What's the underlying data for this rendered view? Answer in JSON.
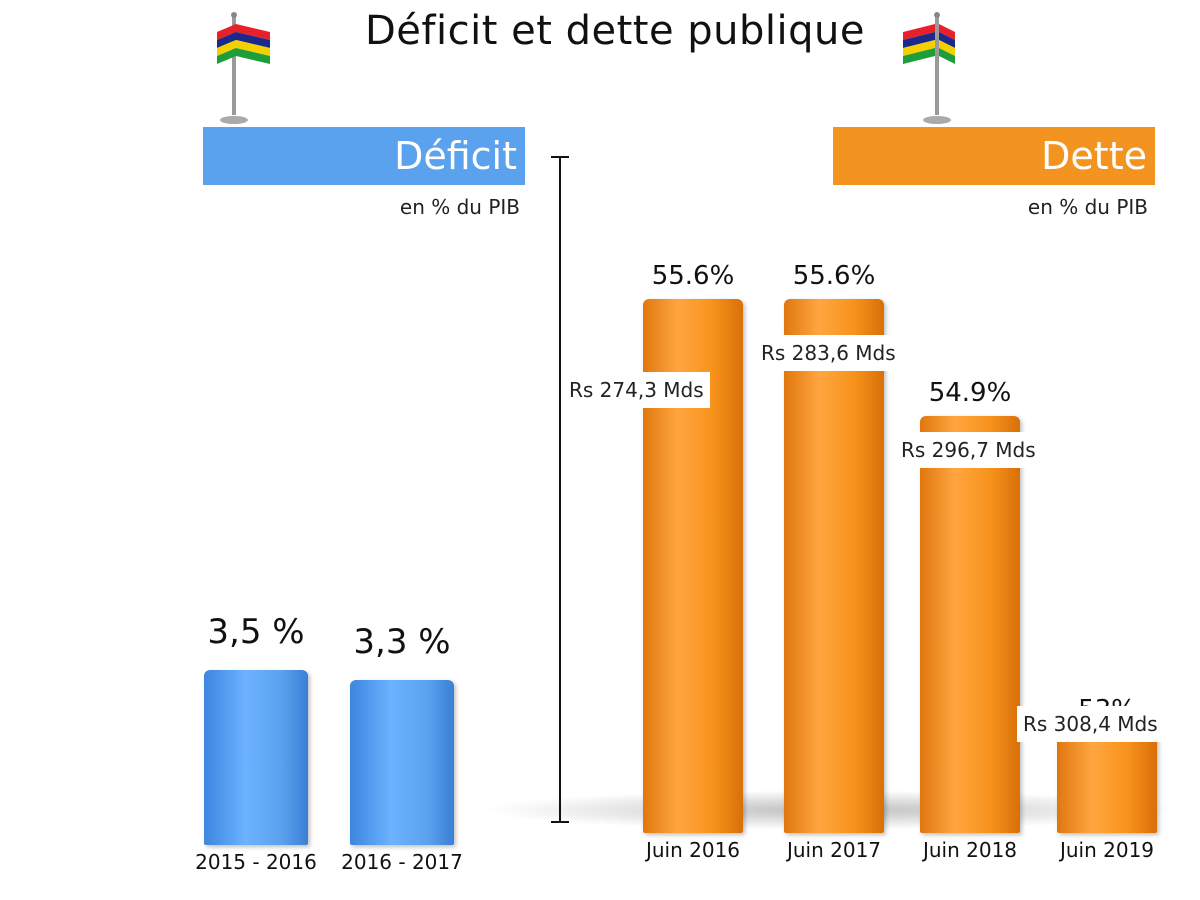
{
  "title": "Déficit et dette publique",
  "colors": {
    "deficit": "#5aa2ee",
    "dette": "#f39421"
  },
  "headers": {
    "deficit": {
      "label": "Déficit",
      "unit": "en % du PIB"
    },
    "dette": {
      "label": "Dette",
      "unit": "en % du PIB"
    }
  },
  "chart_data": [
    {
      "type": "bar",
      "title": "Déficit",
      "ylabel": "en % du PIB",
      "categories": [
        "2015 - 2016",
        "2016 - 2017"
      ],
      "values": [
        3.5,
        3.3
      ],
      "value_labels": [
        "3,5 %",
        "3,3 %"
      ]
    },
    {
      "type": "bar",
      "title": "Dette",
      "ylabel": "en % du PIB",
      "categories": [
        "Juin 2016",
        "Juin 2017",
        "Juin 2018",
        "Juin 2019"
      ],
      "values": [
        55.6,
        55.6,
        54.9,
        53
      ],
      "value_labels": [
        "55.6%",
        "55.6%",
        "54.9%",
        "53%"
      ],
      "amount_labels": [
        "Rs 274,3 Mds",
        "Rs 283,6 Mds",
        "Rs 296,7 Mds",
        "Rs 308,4 Mds"
      ]
    }
  ]
}
